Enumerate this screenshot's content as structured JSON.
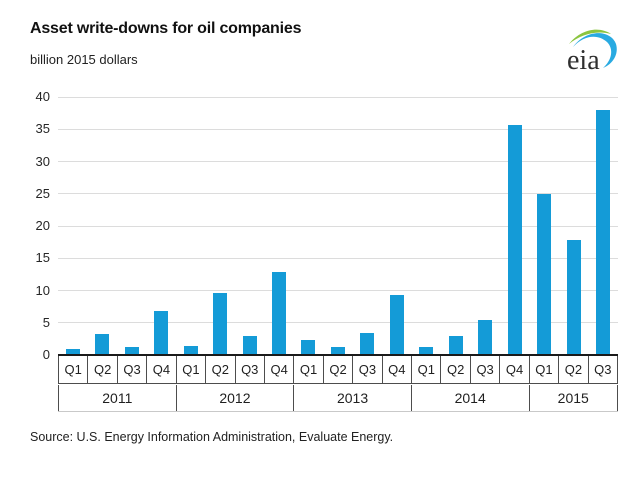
{
  "header": {
    "title": "Asset write-downs for oil companies",
    "subtitle": "billion 2015 dollars",
    "logo_text": "eia"
  },
  "chart_data": {
    "type": "bar",
    "title": "Asset write-downs for oil companies",
    "ylabel": "billion 2015 dollars",
    "ylim": [
      0,
      40
    ],
    "yticks": [
      0,
      5,
      10,
      15,
      20,
      25,
      30,
      35,
      40
    ],
    "grid": true,
    "legend": "none",
    "bar_color": "#149bd7",
    "categories": [
      "Q1 2011",
      "Q2 2011",
      "Q3 2011",
      "Q4 2011",
      "Q1 2012",
      "Q2 2012",
      "Q3 2012",
      "Q4 2012",
      "Q1 2013",
      "Q2 2013",
      "Q3 2013",
      "Q4 2013",
      "Q1 2014",
      "Q2 2014",
      "Q3 2014",
      "Q4 2014",
      "Q1 2015",
      "Q2 2015",
      "Q3 2015"
    ],
    "groups": [
      {
        "year": "2011",
        "quarters": [
          "Q1",
          "Q2",
          "Q3",
          "Q4"
        ],
        "values": [
          0.9,
          3.2,
          1.2,
          6.9
        ]
      },
      {
        "year": "2012",
        "quarters": [
          "Q1",
          "Q2",
          "Q3",
          "Q4"
        ],
        "values": [
          1.4,
          9.6,
          3.0,
          12.8
        ]
      },
      {
        "year": "2013",
        "quarters": [
          "Q1",
          "Q2",
          "Q3",
          "Q4"
        ],
        "values": [
          2.4,
          1.2,
          3.4,
          9.3
        ]
      },
      {
        "year": "2014",
        "quarters": [
          "Q1",
          "Q2",
          "Q3",
          "Q4"
        ],
        "values": [
          1.2,
          3.0,
          5.5,
          35.6
        ]
      },
      {
        "year": "2015",
        "quarters": [
          "Q1",
          "Q2",
          "Q3"
        ],
        "values": [
          25.0,
          17.8,
          38.0
        ]
      }
    ]
  },
  "footer": {
    "source": "Source:  U.S. Energy Information Administration, Evaluate Energy."
  },
  "colors": {
    "bar": "#149bd7",
    "gridline": "#dcdcdc",
    "axis": "#1a1a1a",
    "logo_green": "#8bc53f",
    "logo_blue": "#29aae1"
  }
}
